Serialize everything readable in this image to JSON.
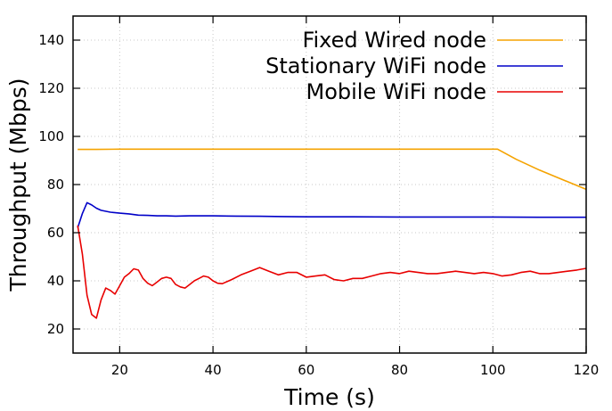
{
  "chart_data": {
    "type": "line",
    "title": "",
    "xlabel": "Time (s)",
    "ylabel": "Throughput (Mbps)",
    "xlim": [
      10,
      120
    ],
    "ylim": [
      10,
      150
    ],
    "x_ticks": [
      20,
      40,
      60,
      80,
      100,
      120
    ],
    "y_ticks": [
      20,
      40,
      60,
      80,
      100,
      120,
      140
    ],
    "grid": true,
    "legend_position": "top-right",
    "series": [
      {
        "name": "Fixed Wired node",
        "color": "#f5a300",
        "x": [
          11,
          15,
          20,
          30,
          40,
          50,
          60,
          70,
          80,
          90,
          100,
          101,
          105,
          110,
          115,
          120
        ],
        "values": [
          94.6,
          94.6,
          94.7,
          94.7,
          94.7,
          94.7,
          94.7,
          94.7,
          94.7,
          94.7,
          94.7,
          94.7,
          90.5,
          86.0,
          82.0,
          78.0
        ]
      },
      {
        "name": "Stationary WiFi node",
        "color": "#0000c8",
        "x": [
          11,
          12,
          13,
          14,
          15,
          16,
          18,
          20,
          22,
          24,
          26,
          28,
          30,
          32,
          35,
          40,
          45,
          50,
          55,
          60,
          70,
          80,
          90,
          100,
          110,
          120
        ],
        "values": [
          62,
          68,
          72.5,
          71.5,
          70.2,
          69.3,
          68.5,
          68.1,
          67.8,
          67.3,
          67.2,
          67.0,
          67.0,
          66.9,
          67.0,
          67.0,
          66.9,
          66.8,
          66.7,
          66.6,
          66.6,
          66.5,
          66.5,
          66.5,
          66.4,
          66.4
        ]
      },
      {
        "name": "Mobile WiFi node",
        "color": "#e80000",
        "x": [
          11,
          12,
          13,
          14,
          15,
          16,
          17,
          18,
          19,
          20,
          21,
          22,
          23,
          24,
          25,
          26,
          27,
          28,
          29,
          30,
          31,
          32,
          33,
          34,
          35,
          36,
          37,
          38,
          39,
          40,
          41,
          42,
          44,
          46,
          48,
          50,
          52,
          54,
          56,
          58,
          60,
          62,
          64,
          66,
          68,
          70,
          72,
          74,
          76,
          78,
          80,
          82,
          84,
          86,
          88,
          90,
          92,
          94,
          96,
          98,
          100,
          102,
          104,
          106,
          108,
          110,
          112,
          114,
          116,
          118,
          120
        ],
        "values": [
          63,
          51,
          34,
          26,
          24.5,
          32,
          37,
          36,
          34.5,
          38,
          41.5,
          43,
          45,
          44.5,
          41,
          39,
          38,
          39.5,
          41,
          41.5,
          41,
          38.5,
          37.5,
          37,
          38.5,
          40,
          41,
          42,
          41.5,
          40,
          39,
          38.8,
          40.5,
          42.5,
          44,
          45.5,
          44,
          42.5,
          43.5,
          43.5,
          41.5,
          42,
          42.5,
          40.5,
          40,
          41,
          41,
          42,
          43,
          43.5,
          43,
          44,
          43.5,
          43,
          43,
          43.5,
          44,
          43.5,
          43,
          43.5,
          43,
          42,
          42.5,
          43.5,
          44,
          43,
          43,
          43.5,
          44,
          44.5,
          45.2
        ]
      }
    ]
  }
}
